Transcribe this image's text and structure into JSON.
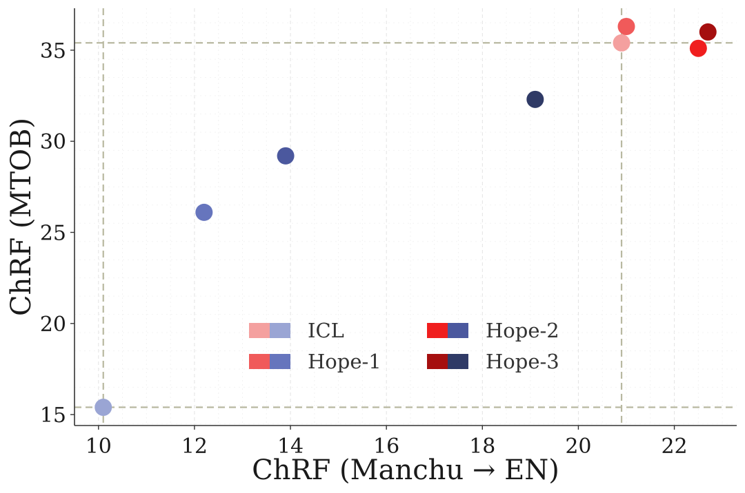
{
  "chart_data": {
    "type": "scatter",
    "title": "",
    "xlabel": "ChRF (Manchu → EN)",
    "ylabel": "ChRF (MTOB)",
    "xlim": [
      9.5,
      23.3
    ],
    "ylim": [
      14.4,
      37.3
    ],
    "xticks": [
      10,
      12,
      14,
      16,
      18,
      20,
      22
    ],
    "yticks": [
      15,
      20,
      25,
      30,
      35
    ],
    "grid": true,
    "reference_lines": {
      "vertical_x": [
        10.1,
        20.9
      ],
      "horizontal_y": [
        15.4,
        35.4
      ]
    },
    "legend_position": "center-bottom",
    "series": [
      {
        "name": "ICL",
        "colors": {
          "red": "#f4a09f",
          "blue": "#9aa5d4"
        },
        "points": [
          {
            "x": 10.1,
            "y": 15.4,
            "tone": "blue"
          },
          {
            "x": 20.9,
            "y": 35.4,
            "tone": "red"
          }
        ]
      },
      {
        "name": "Hope-1",
        "colors": {
          "red": "#f05a5a",
          "blue": "#6675bd"
        },
        "points": [
          {
            "x": 12.2,
            "y": 26.1,
            "tone": "blue"
          },
          {
            "x": 21.0,
            "y": 36.3,
            "tone": "red"
          }
        ]
      },
      {
        "name": "Hope-2",
        "colors": {
          "red": "#f01e1e",
          "blue": "#4b589e"
        },
        "points": [
          {
            "x": 13.9,
            "y": 29.2,
            "tone": "blue"
          },
          {
            "x": 22.5,
            "y": 35.1,
            "tone": "red"
          }
        ]
      },
      {
        "name": "Hope-3",
        "colors": {
          "red": "#a50f0f",
          "blue": "#2f3a66"
        },
        "points": [
          {
            "x": 19.1,
            "y": 32.3,
            "tone": "blue"
          },
          {
            "x": 22.7,
            "y": 36.0,
            "tone": "red"
          }
        ]
      }
    ]
  }
}
